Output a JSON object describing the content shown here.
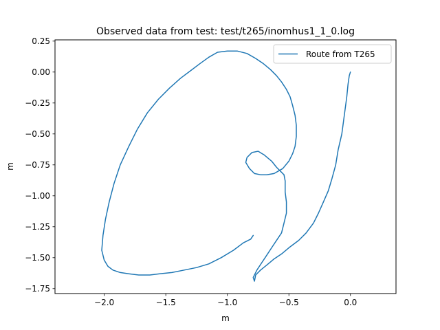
{
  "chart_data": {
    "type": "line",
    "title": "Observed data from test: test/t265/inomhus1_1_0.log",
    "xlabel": "m",
    "ylabel": "m",
    "xlim": [
      -2.4,
      0.37
    ],
    "ylim": [
      -1.79,
      0.26
    ],
    "xticks": [
      -2.0,
      -1.5,
      -1.0,
      -0.5,
      0.0
    ],
    "xtick_labels": [
      "−2.0",
      "−1.5",
      "−1.0",
      "−0.5",
      "0.0"
    ],
    "yticks": [
      0.25,
      0.0,
      -0.25,
      -0.5,
      -0.75,
      -1.0,
      -1.25,
      -1.5,
      -1.75
    ],
    "ytick_labels": [
      "0.25",
      "0.00",
      "−0.25",
      "−0.50",
      "−0.75",
      "−1.00",
      "−1.25",
      "−1.50",
      "−1.75"
    ],
    "grid": false,
    "legend_position": "top-right",
    "series": [
      {
        "name": "Route from T265",
        "color": "#1f77b4",
        "x": [
          0.0,
          -0.01,
          -0.02,
          -0.03,
          -0.05,
          -0.07,
          -0.1,
          -0.12,
          -0.15,
          -0.18,
          -0.22,
          -0.26,
          -0.3,
          -0.36,
          -0.42,
          -0.5,
          -0.56,
          -0.62,
          -0.68,
          -0.73,
          -0.77,
          -0.78,
          -0.79,
          -0.76,
          -0.72,
          -0.68,
          -0.64,
          -0.6,
          -0.56,
          -0.54,
          -0.52,
          -0.52,
          -0.53,
          -0.53,
          -0.54,
          -0.57,
          -0.6,
          -0.64,
          -0.7,
          -0.75,
          -0.8,
          -0.84,
          -0.85,
          -0.82,
          -0.78,
          -0.73,
          -0.68,
          -0.62,
          -0.55,
          -0.5,
          -0.47,
          -0.45,
          -0.44,
          -0.44,
          -0.45,
          -0.47,
          -0.49,
          -0.52,
          -0.56,
          -0.6,
          -0.65,
          -0.71,
          -0.77,
          -0.84,
          -0.92,
          -1.0,
          -1.08,
          -1.15,
          -1.22,
          -1.3,
          -1.38,
          -1.47,
          -1.56,
          -1.65,
          -1.73,
          -1.8,
          -1.87,
          -1.92,
          -1.96,
          -1.99,
          -2.01,
          -2.02,
          -2.0,
          -1.97,
          -1.93,
          -1.87,
          -1.8,
          -1.72,
          -1.63,
          -1.55,
          -1.45,
          -1.35,
          -1.25,
          -1.15,
          -1.05,
          -0.95,
          -0.87,
          -0.81,
          -0.79
        ],
        "y": [
          0.0,
          -0.03,
          -0.1,
          -0.2,
          -0.35,
          -0.5,
          -0.63,
          -0.75,
          -0.86,
          -0.96,
          -1.05,
          -1.14,
          -1.22,
          -1.3,
          -1.36,
          -1.42,
          -1.47,
          -1.51,
          -1.56,
          -1.6,
          -1.64,
          -1.69,
          -1.66,
          -1.6,
          -1.54,
          -1.48,
          -1.42,
          -1.36,
          -1.3,
          -1.22,
          -1.14,
          -1.05,
          -0.97,
          -0.88,
          -0.83,
          -0.8,
          -0.77,
          -0.72,
          -0.67,
          -0.64,
          -0.65,
          -0.69,
          -0.73,
          -0.78,
          -0.82,
          -0.83,
          -0.83,
          -0.82,
          -0.78,
          -0.72,
          -0.66,
          -0.6,
          -0.52,
          -0.43,
          -0.35,
          -0.27,
          -0.2,
          -0.14,
          -0.08,
          -0.03,
          0.02,
          0.07,
          0.11,
          0.15,
          0.17,
          0.17,
          0.16,
          0.12,
          0.07,
          0.01,
          -0.05,
          -0.13,
          -0.22,
          -0.33,
          -0.46,
          -0.6,
          -0.75,
          -0.9,
          -1.05,
          -1.19,
          -1.32,
          -1.44,
          -1.52,
          -1.57,
          -1.6,
          -1.62,
          -1.63,
          -1.64,
          -1.64,
          -1.63,
          -1.62,
          -1.6,
          -1.58,
          -1.55,
          -1.5,
          -1.44,
          -1.38,
          -1.35,
          -1.32
        ]
      }
    ]
  }
}
